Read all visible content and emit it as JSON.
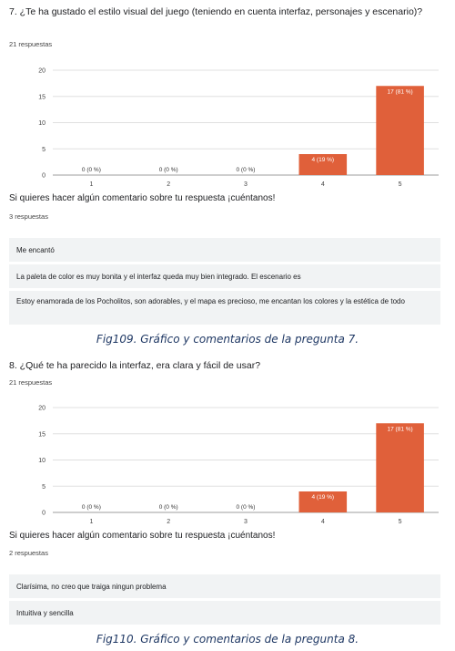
{
  "sections": [
    {
      "question": "7. ¿Te ha gustado el estilo visual del juego (teniendo en cuenta interfaz, personajes y escenario)?",
      "responses": "21 respuestas",
      "comments_title": "Si quieres hacer algún comentario sobre tu respuesta ¡cuéntanos!",
      "comments_count": "3 respuestas",
      "comments": [
        "Me encantó",
        "La paleta de color es muy bonita y el interfaz queda muy bien integrado. El escenario es",
        "Estoy enamorada de los Pocholitos, son adorables, y el mapa es precioso, me encantan los colores y la estética de todo"
      ],
      "caption": "Fig109. Gráfico y comentarios de la pregunta 7."
    },
    {
      "question": "8. ¿Qué te ha parecido la interfaz, era clara y fácil de usar?",
      "responses": "21 respuestas",
      "comments_title": "Si quieres hacer algún comentario sobre tu respuesta ¡cuéntanos!",
      "comments_count": "2 respuestas",
      "comments": [
        "Clarísima, no creo que traiga ningun problema",
        "Intuitiva y sencilla"
      ],
      "caption": "Fig110. Gráfico y comentarios de la pregunta 8."
    }
  ],
  "chart_data": [
    {
      "type": "bar",
      "categories": [
        "1",
        "2",
        "3",
        "4",
        "5"
      ],
      "values": [
        0,
        0,
        0,
        4,
        17
      ],
      "labels": [
        "0 (0 %)",
        "0 (0 %)",
        "0 (0 %)",
        "4 (19 %)",
        "17 (81 %)"
      ],
      "yticks": [
        0,
        5,
        10,
        15,
        20
      ],
      "ylim": [
        0,
        20
      ],
      "grid": true,
      "bar_color": "#e0603a"
    },
    {
      "type": "bar",
      "categories": [
        "1",
        "2",
        "3",
        "4",
        "5"
      ],
      "values": [
        0,
        0,
        0,
        4,
        17
      ],
      "labels": [
        "0 (0 %)",
        "0 (0 %)",
        "0 (0 %)",
        "4 (19 %)",
        "17 (81 %)"
      ],
      "yticks": [
        0,
        5,
        10,
        15,
        20
      ],
      "ylim": [
        0,
        20
      ],
      "grid": true,
      "bar_color": "#e0603a"
    }
  ]
}
